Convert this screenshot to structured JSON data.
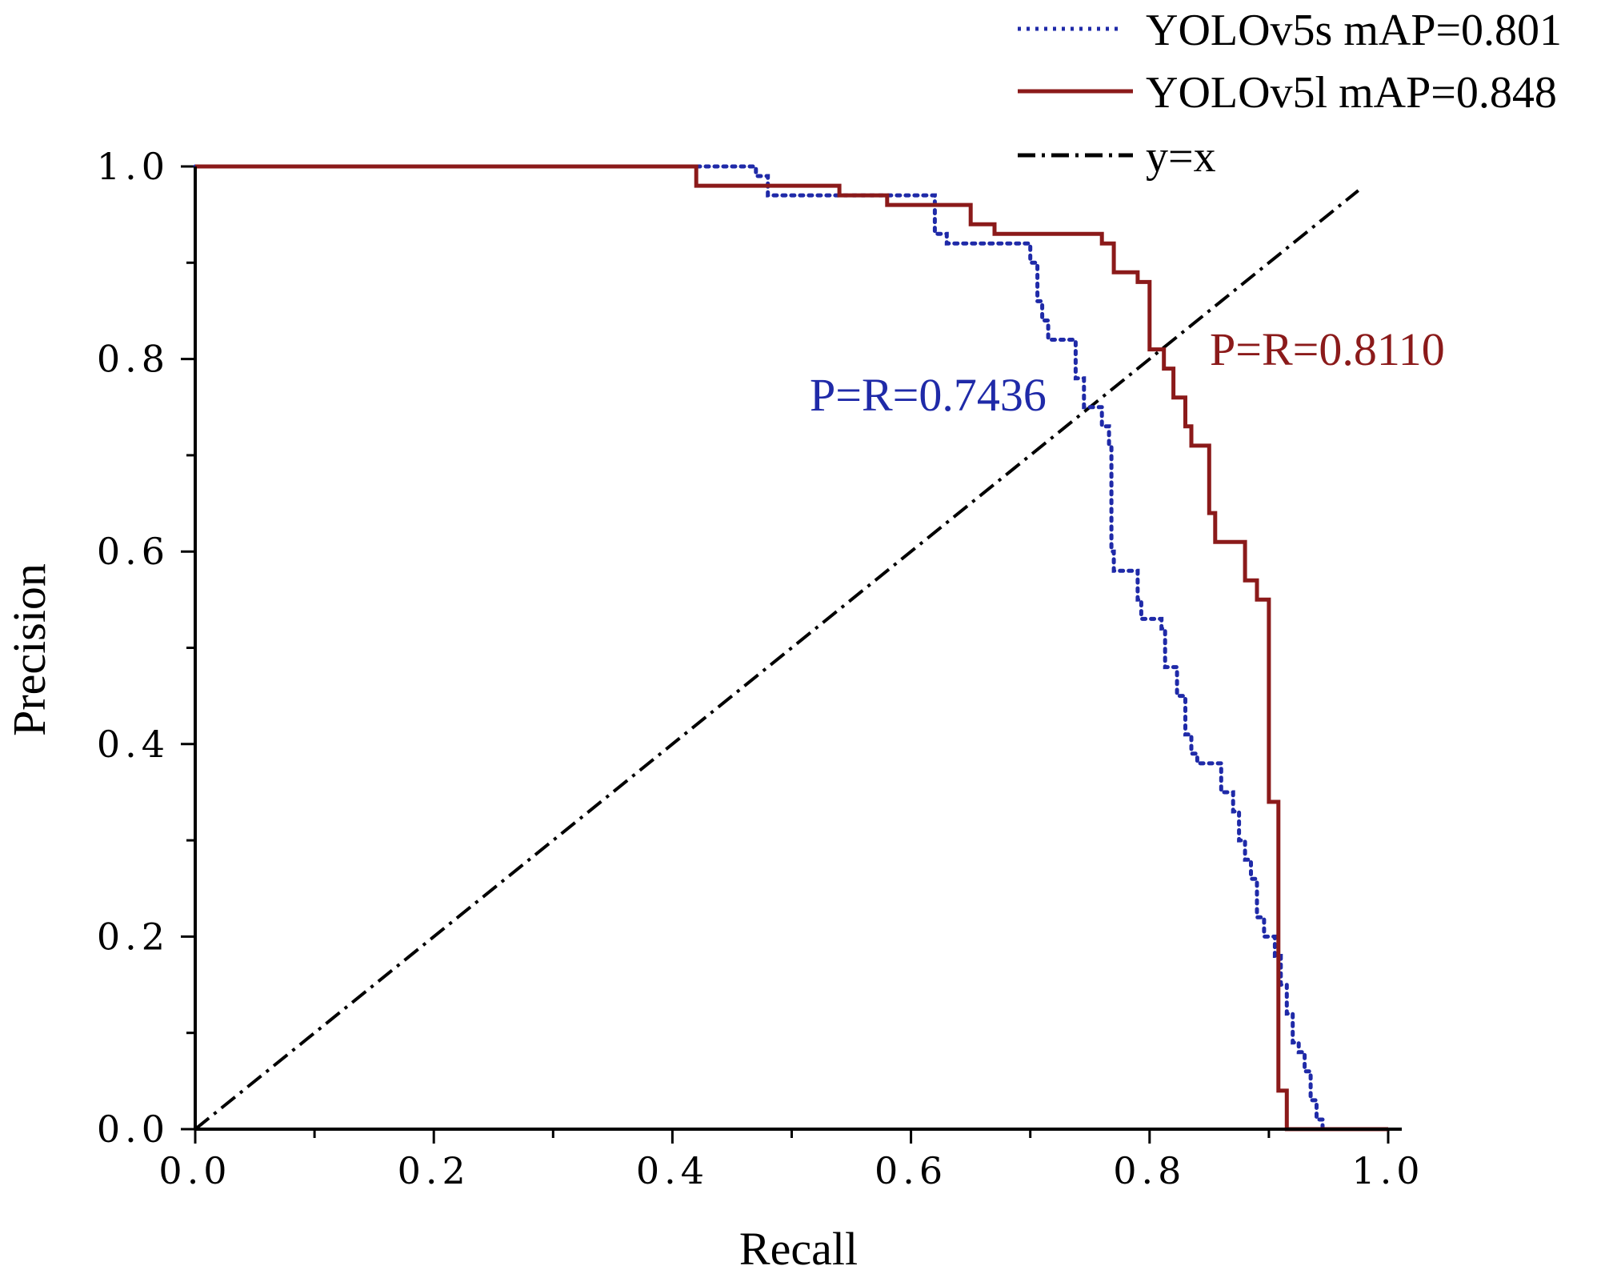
{
  "chart_data": {
    "type": "line",
    "title": "",
    "xlabel": "Recall",
    "ylabel": "Precision",
    "xlim": [
      0,
      1.0
    ],
    "ylim": [
      0,
      1.0
    ],
    "x_ticks": [
      "0.0",
      "0.2",
      "0.4",
      "0.6",
      "0.8",
      "1.0"
    ],
    "y_ticks": [
      "0.0",
      "0.2",
      "0.4",
      "0.6",
      "0.8",
      "1.0"
    ],
    "legend_position": "top-right",
    "series": [
      {
        "name": "YOLOv5s mAP=0.801",
        "style": "dotted",
        "color": "#1f2aa8",
        "x": [
          0.0,
          0.47,
          0.47,
          0.48,
          0.48,
          0.5,
          0.5,
          0.62,
          0.62,
          0.63,
          0.63,
          0.7,
          0.7,
          0.706,
          0.706,
          0.71,
          0.71,
          0.715,
          0.715,
          0.738,
          0.738,
          0.745,
          0.745,
          0.76,
          0.76,
          0.766,
          0.766,
          0.768,
          0.768,
          0.77,
          0.77,
          0.79,
          0.79,
          0.793,
          0.793,
          0.81,
          0.81,
          0.813,
          0.813,
          0.823,
          0.823,
          0.83,
          0.83,
          0.835,
          0.835,
          0.84,
          0.84,
          0.86,
          0.86,
          0.87,
          0.87,
          0.875,
          0.875,
          0.88,
          0.88,
          0.885,
          0.885,
          0.89,
          0.89,
          0.896,
          0.896,
          0.905,
          0.905,
          0.91,
          0.91,
          0.915,
          0.915,
          0.92,
          0.92,
          0.925,
          0.925,
          0.93,
          0.93,
          0.935,
          0.935,
          0.94,
          0.94,
          0.945,
          0.945,
          1.0
        ],
        "y": [
          1.0,
          1.0,
          0.99,
          0.99,
          0.97,
          0.97,
          0.97,
          0.97,
          0.93,
          0.93,
          0.92,
          0.92,
          0.9,
          0.9,
          0.86,
          0.86,
          0.84,
          0.84,
          0.82,
          0.82,
          0.78,
          0.78,
          0.75,
          0.75,
          0.73,
          0.73,
          0.71,
          0.71,
          0.6,
          0.6,
          0.58,
          0.58,
          0.55,
          0.55,
          0.53,
          0.53,
          0.52,
          0.52,
          0.48,
          0.48,
          0.45,
          0.45,
          0.41,
          0.41,
          0.39,
          0.39,
          0.38,
          0.38,
          0.35,
          0.35,
          0.33,
          0.33,
          0.3,
          0.3,
          0.28,
          0.28,
          0.26,
          0.26,
          0.22,
          0.22,
          0.2,
          0.2,
          0.18,
          0.18,
          0.15,
          0.15,
          0.12,
          0.12,
          0.09,
          0.09,
          0.08,
          0.08,
          0.06,
          0.06,
          0.03,
          0.03,
          0.01,
          0.01,
          0.0,
          0.0
        ]
      },
      {
        "name": "YOLOv5l mAP=0.848",
        "style": "solid",
        "color": "#8b1a1a",
        "x": [
          0.0,
          0.42,
          0.42,
          0.54,
          0.54,
          0.58,
          0.58,
          0.65,
          0.65,
          0.67,
          0.67,
          0.76,
          0.76,
          0.77,
          0.77,
          0.79,
          0.79,
          0.8,
          0.8,
          0.806,
          0.806,
          0.812,
          0.812,
          0.82,
          0.82,
          0.83,
          0.83,
          0.835,
          0.835,
          0.84,
          0.84,
          0.85,
          0.85,
          0.855,
          0.855,
          0.865,
          0.865,
          0.88,
          0.88,
          0.89,
          0.89,
          0.9,
          0.9,
          0.908,
          0.908,
          0.915,
          0.915,
          0.92,
          1.0
        ],
        "y": [
          1.0,
          1.0,
          0.98,
          0.98,
          0.97,
          0.97,
          0.96,
          0.96,
          0.94,
          0.94,
          0.93,
          0.93,
          0.92,
          0.92,
          0.89,
          0.89,
          0.88,
          0.88,
          0.81,
          0.81,
          0.81,
          0.81,
          0.79,
          0.79,
          0.76,
          0.76,
          0.73,
          0.73,
          0.71,
          0.71,
          0.71,
          0.71,
          0.64,
          0.64,
          0.61,
          0.61,
          0.61,
          0.61,
          0.57,
          0.57,
          0.55,
          0.55,
          0.34,
          0.34,
          0.04,
          0.04,
          0.0,
          0.0,
          0.0
        ]
      },
      {
        "name": "y=x",
        "style": "dash-dot",
        "color": "#000000",
        "x": [
          0.0,
          0.975
        ],
        "y": [
          0.0,
          0.975
        ]
      }
    ],
    "annotations": [
      {
        "text": "P=R=0.7436",
        "x": 0.7436,
        "y": 0.7436,
        "color": "#1f2aa8"
      },
      {
        "text": "P=R=0.8110",
        "x": 0.811,
        "y": 0.811,
        "color": "#8b1a1a"
      }
    ]
  }
}
